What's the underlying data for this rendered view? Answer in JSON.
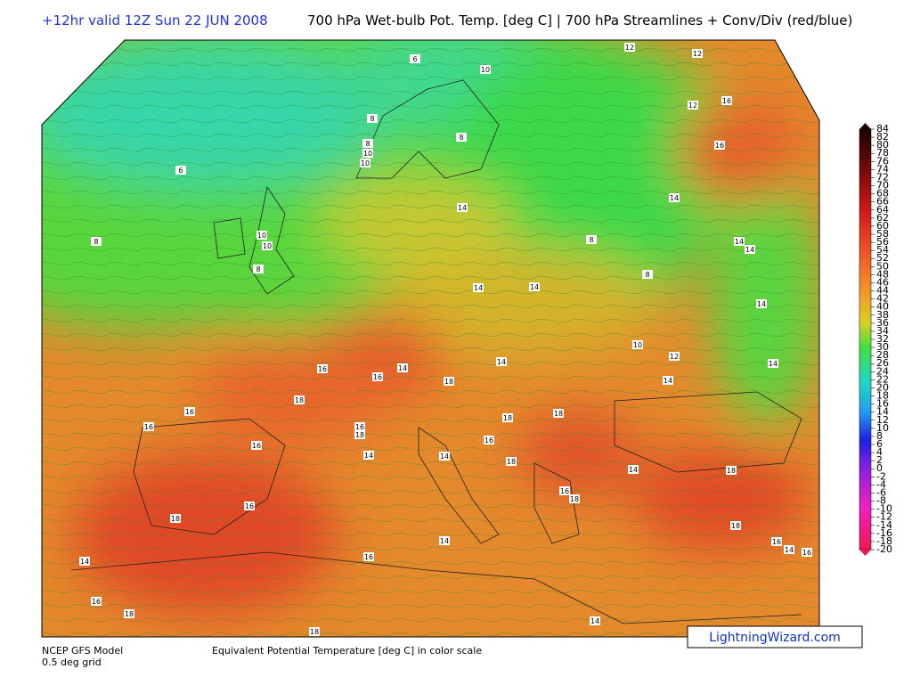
{
  "header": {
    "run": "+12hr valid 12Z Sun 22 JUN 2008",
    "title": "700 hPa Wet-bulb Pot. Temp. [deg C] | 700 hPa Streamlines + Conv/Div (red/blue)"
  },
  "map": {
    "contour_labels": [
      6,
      10,
      12,
      12,
      8,
      8,
      6,
      8,
      10,
      10,
      12,
      16,
      16,
      14,
      10,
      10,
      8,
      8,
      8,
      14,
      14,
      14,
      8,
      14,
      14,
      14,
      10,
      12,
      14,
      14,
      14,
      16,
      16,
      14,
      18,
      18,
      16,
      16,
      16,
      18,
      18,
      18,
      16,
      14,
      14,
      16,
      18,
      14,
      18,
      16,
      18,
      16,
      18,
      14,
      18,
      16,
      14,
      16,
      14,
      16,
      16,
      18,
      18,
      14
    ]
  },
  "colorbar": {
    "ticks": [
      84,
      82,
      80,
      78,
      76,
      74,
      72,
      70,
      68,
      66,
      64,
      62,
      60,
      58,
      56,
      54,
      52,
      50,
      48,
      46,
      44,
      42,
      40,
      38,
      36,
      34,
      32,
      30,
      28,
      26,
      24,
      22,
      20,
      18,
      16,
      14,
      12,
      10,
      8,
      6,
      4,
      2,
      0,
      -2,
      -4,
      -6,
      -8,
      -10,
      -12,
      -14,
      -16,
      -18,
      -20
    ]
  },
  "footer": {
    "model": "NCEP GFS Model",
    "grid": "0.5 deg grid",
    "caption": "Equivalent Potential Temperature [deg C] in color scale",
    "credit": "LightningWizard.com"
  }
}
